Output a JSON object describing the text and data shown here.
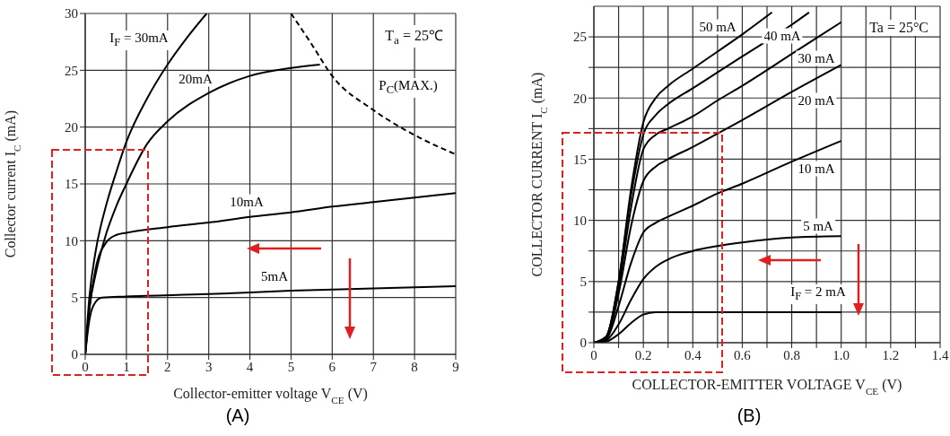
{
  "chart_data": [
    {
      "type": "line",
      "title": "(A)",
      "xlabel": "Collector-emitter voltage V$_{CE}$ (V)",
      "ylabel": "Collector current I$_{C}$ (mA)",
      "xlim": [
        0,
        9
      ],
      "ylim": [
        0,
        30
      ],
      "xticks": [
        0,
        1,
        2,
        3,
        4,
        5,
        6,
        7,
        8,
        9
      ],
      "yticks": [
        0,
        5,
        10,
        15,
        20,
        25,
        30
      ],
      "grid": true,
      "marker": "none",
      "series": [
        {
          "name": "I$_{F}$ = 30mA",
          "color": "#000000",
          "x": [
            0,
            0.1,
            0.25,
            0.5,
            0.75,
            1,
            1.5,
            2,
            2.5,
            2.95
          ],
          "values": [
            0,
            5,
            9,
            13,
            16,
            18.7,
            22.5,
            25.5,
            28,
            30
          ]
        },
        {
          "name": "20mA",
          "color": "#000000",
          "x": [
            0,
            0.1,
            0.25,
            0.5,
            0.75,
            1,
            1.5,
            2,
            3,
            4,
            5,
            5.7
          ],
          "values": [
            0,
            4,
            7,
            10.5,
            13,
            15,
            18.5,
            20.5,
            23,
            24.5,
            25.2,
            25.5
          ]
        },
        {
          "name": "10mA",
          "color": "#000000",
          "x": [
            0,
            0.1,
            0.25,
            0.5,
            0.75,
            1,
            2,
            3,
            4,
            5,
            6,
            7,
            8,
            9
          ],
          "values": [
            0,
            4,
            7.5,
            9.8,
            10.5,
            10.7,
            11.2,
            11.6,
            12.1,
            12.5,
            13,
            13.4,
            13.8,
            14.2
          ]
        },
        {
          "name": "5mA",
          "color": "#000000",
          "x": [
            0,
            0.1,
            0.2,
            0.4,
            1,
            3,
            5,
            7,
            9
          ],
          "values": [
            0,
            3,
            4.3,
            5,
            5.1,
            5.3,
            5.6,
            5.8,
            6
          ]
        },
        {
          "name": "P$_{C}$(MAX.)",
          "color": "#000000",
          "line_style": "dashed",
          "x": [
            5,
            5.5,
            6,
            7,
            8,
            9
          ],
          "values": [
            30,
            27.3,
            24.5,
            21.5,
            19.3,
            17.6
          ]
        }
      ],
      "annotations": [
        "T$_{a}$ = 25℃"
      ]
    },
    {
      "type": "line",
      "title": "(B)",
      "xlabel": "COLLECTOR-EMITTER VOLTAGE  V$_{CE}$  (V)",
      "ylabel": "COLLECTOR CURRENT  I$_{C}$  (mA)",
      "xlim": [
        0,
        1.4
      ],
      "ylim": [
        0,
        27.5
      ],
      "xticks": [
        0,
        {
          "value": 0.1,
          "label": null
        },
        0.2,
        {
          "value": 0.3,
          "label": null
        },
        0.4,
        {
          "value": 0.5,
          "label": null
        },
        0.6,
        {
          "value": 0.7,
          "label": null
        },
        0.8,
        {
          "value": 0.9,
          "label": null
        },
        {
          "value": 1,
          "label": "1.0"
        },
        {
          "value": 1.1,
          "label": null
        },
        1.2,
        {
          "value": 1.3,
          "label": null
        },
        1.4
      ],
      "yticks": [
        0,
        {
          "value": 2.5,
          "label": null
        },
        5,
        {
          "value": 7.5,
          "label": null
        },
        10,
        {
          "value": 12.5,
          "label": null
        },
        15,
        {
          "value": 17.5,
          "label": null
        },
        20,
        {
          "value": 22.5,
          "label": null
        },
        25
      ],
      "grid": true,
      "marker": "none",
      "series": [
        {
          "name": "I$_{F}$ = 2 mA",
          "color": "#000000",
          "x": [
            0,
            0.05,
            0.1,
            0.15,
            0.2,
            0.25,
            0.3,
            1
          ],
          "values": [
            0,
            0.1,
            0.7,
            1.6,
            2.3,
            2.5,
            2.5,
            2.5
          ]
        },
        {
          "name": "5 mA",
          "color": "#000000",
          "x": [
            0,
            0.05,
            0.1,
            0.15,
            0.2,
            0.25,
            0.3,
            0.4,
            0.5,
            0.6,
            0.8,
            1
          ],
          "values": [
            0,
            0.2,
            1.5,
            3.5,
            5.2,
            6.2,
            6.8,
            7.5,
            7.9,
            8.2,
            8.6,
            8.7
          ]
        },
        {
          "name": "10 mA",
          "color": "#000000",
          "x": [
            0,
            0.05,
            0.1,
            0.15,
            0.2,
            0.25,
            0.3,
            0.4,
            0.5,
            0.6,
            0.8,
            1
          ],
          "values": [
            0,
            0.3,
            3,
            6.5,
            9,
            9.8,
            10.3,
            11.2,
            12.2,
            13,
            14.8,
            16.5
          ]
        },
        {
          "name": "20 mA",
          "color": "#000000",
          "x": [
            0,
            0.05,
            0.1,
            0.15,
            0.2,
            0.25,
            0.3,
            0.4,
            0.5,
            0.6,
            0.8,
            1
          ],
          "values": [
            0,
            0.4,
            4,
            9.5,
            13.2,
            14.4,
            15,
            16,
            17.1,
            18.2,
            20.5,
            22.7
          ]
        },
        {
          "name": "30 mA",
          "color": "#000000",
          "x": [
            0,
            0.05,
            0.1,
            0.15,
            0.2,
            0.25,
            0.3,
            0.4,
            0.5,
            0.6,
            0.8,
            1
          ],
          "values": [
            0,
            0.5,
            4.5,
            11,
            15.8,
            17,
            17.5,
            18.5,
            19.8,
            21,
            23.6,
            26.2
          ]
        },
        {
          "name": "40 mA",
          "color": "#000000",
          "x": [
            0,
            0.05,
            0.1,
            0.15,
            0.2,
            0.25,
            0.3,
            0.4,
            0.5,
            0.6,
            0.8,
            0.87
          ],
          "values": [
            0,
            0.5,
            5,
            12,
            17,
            18.6,
            19.5,
            20.8,
            22.1,
            23.4,
            26,
            27
          ]
        },
        {
          "name": "50 mA",
          "color": "#000000",
          "x": [
            0,
            0.05,
            0.1,
            0.15,
            0.2,
            0.25,
            0.3,
            0.4,
            0.5,
            0.6,
            0.72
          ],
          "values": [
            0,
            0.5,
            5,
            12.5,
            18,
            20,
            21,
            22.4,
            23.8,
            25.2,
            27
          ]
        }
      ],
      "annotations": [
        "Ta = 25°C"
      ]
    }
  ]
}
